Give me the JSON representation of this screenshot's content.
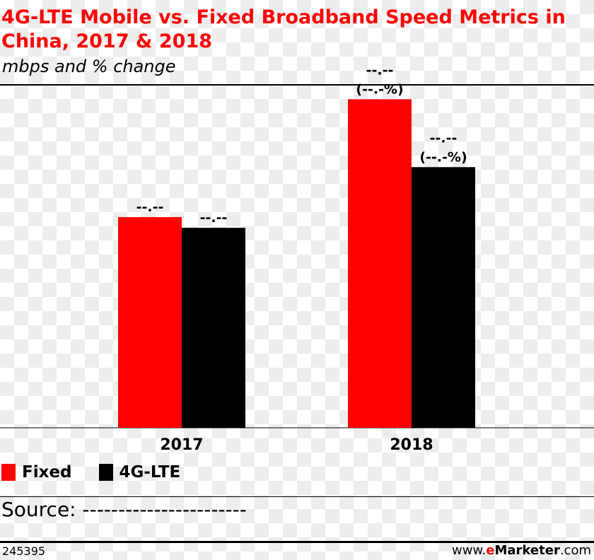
{
  "colors": {
    "fixed": "#ff0000",
    "lte": "#000000",
    "title": "#ff0000"
  },
  "header": {
    "title": "4G-LTE Mobile vs. Fixed Broadband Speed Metrics in China, 2017 & 2018",
    "subtitle": "mbps and % change"
  },
  "chart_data": {
    "type": "bar",
    "title": "4G-LTE Mobile vs. Fixed Broadband Speed Metrics in China, 2017 & 2018",
    "subtitle": "mbps and % change",
    "categories": [
      "2017",
      "2018"
    ],
    "ylim": [
      0,
      100
    ],
    "grid": false,
    "legend_position": "bottom-left",
    "series": [
      {
        "name": "Fixed",
        "color": "#ff0000",
        "values": [
          59,
          92
        ],
        "labels": [
          [
            "--.--"
          ],
          [
            "--.--",
            "(--.-%)"
          ]
        ]
      },
      {
        "name": "4G-LTE",
        "color": "#000000",
        "values": [
          56,
          73
        ],
        "labels": [
          [
            "--.--"
          ],
          [
            "--.--",
            "(--.-%)"
          ]
        ]
      }
    ]
  },
  "source": {
    "text": "Source: -----------------------"
  },
  "footer": {
    "chart_id": "245395",
    "brand_prefix": "www.",
    "brand_e": "e",
    "brand_name": "Marketer",
    "brand_suffix": ".com"
  }
}
